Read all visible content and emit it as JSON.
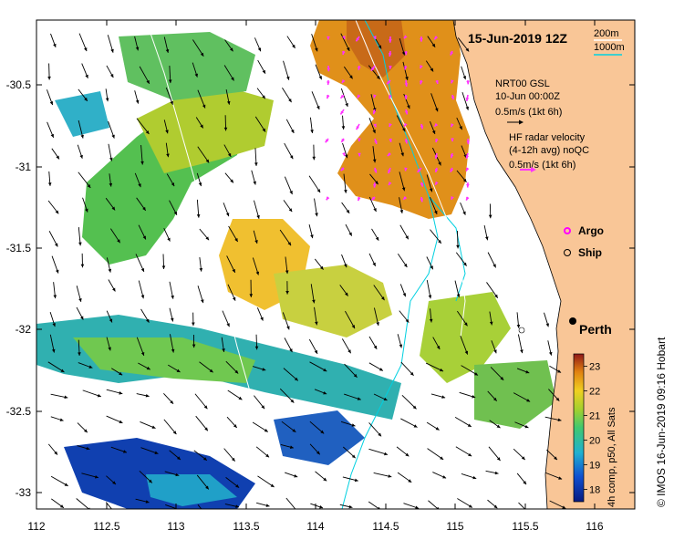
{
  "title": "15-Jun-2019 12Z",
  "depth_legend": {
    "contour_200": "200m",
    "contour_1000": "1000m",
    "color_200": "#ffffff",
    "color_1000": "#00e0e0"
  },
  "wind_legend": {
    "line1": "NRT00 GSL",
    "line2": "10-Jun 00:00Z",
    "line3": "0.5m/s (1kt 6h)"
  },
  "radar_legend": {
    "line1": "HF radar velocity",
    "line2": "(4-12h avg) noQC",
    "line3": "0.5m/s (1kt 6h)",
    "arrow_color": "#ff33ff"
  },
  "markers": {
    "argo_label": "Argo",
    "ship_label": "Ship",
    "argo_color": "#ff00ff"
  },
  "city": {
    "label": "Perth"
  },
  "colorbar": {
    "ticks": [
      "23",
      "22",
      "21",
      "20",
      "19",
      "18"
    ],
    "caption": "4h comp, p50, All Sats",
    "range": [
      17.5,
      23.5
    ]
  },
  "credit": "© IMOS 16-Jun-2019 09:16 Hobart",
  "axes": {
    "x_ticks": [
      "112",
      "112.5",
      "113",
      "113.5",
      "114",
      "114.5",
      "115",
      "115.5",
      "116"
    ],
    "y_ticks": [
      "-30.5",
      "-31",
      "-31.5",
      "-32",
      "-32.5",
      "-33"
    ]
  },
  "colors": {
    "land": "#f9c697",
    "sst_warm": "#e08a10",
    "sst_mid": "#9ccc33",
    "sst_cool": "#1aa0c8",
    "sst_cold": "#0a2fa0"
  }
}
